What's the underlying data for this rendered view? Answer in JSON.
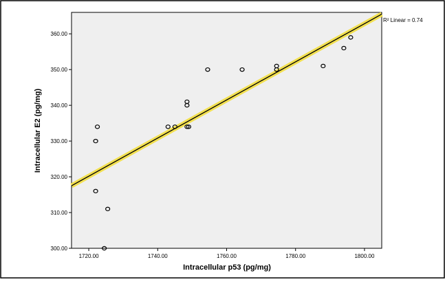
{
  "chart_data": {
    "type": "scatter",
    "xlabel": "Intracellular p53  (pg/mg)",
    "ylabel": "Intracellular E2  (pg/mg)",
    "xlim": [
      1715,
      1805
    ],
    "ylim": [
      300,
      366
    ],
    "x_ticks": [
      "1720.00",
      "1740.00",
      "1760.00",
      "1780.00",
      "1800.00"
    ],
    "y_ticks": [
      "300.00",
      "310.00",
      "320.00",
      "330.00",
      "340.00",
      "350.00",
      "360.00"
    ],
    "points": [
      {
        "x": 1722.0,
        "y": 330.0
      },
      {
        "x": 1722.5,
        "y": 334.0
      },
      {
        "x": 1722.0,
        "y": 316.0
      },
      {
        "x": 1725.5,
        "y": 311.0
      },
      {
        "x": 1724.5,
        "y": 300.0
      },
      {
        "x": 1743.0,
        "y": 334.0
      },
      {
        "x": 1745.0,
        "y": 334.0
      },
      {
        "x": 1748.5,
        "y": 341.0
      },
      {
        "x": 1748.5,
        "y": 340.0
      },
      {
        "x": 1748.5,
        "y": 334.0
      },
      {
        "x": 1749.0,
        "y": 334.0
      },
      {
        "x": 1754.5,
        "y": 350.0
      },
      {
        "x": 1764.5,
        "y": 350.0
      },
      {
        "x": 1774.5,
        "y": 351.0
      },
      {
        "x": 1774.5,
        "y": 350.0
      },
      {
        "x": 1788.0,
        "y": 351.0
      },
      {
        "x": 1794.0,
        "y": 356.0
      },
      {
        "x": 1796.0,
        "y": 359.0
      }
    ],
    "fit_line": {
      "x": [
        1715,
        1805
      ],
      "y": [
        317.5,
        365.5
      ]
    },
    "fit_label": "R² Linear = 0.74",
    "grid": false,
    "colors": {
      "plot_bg": "#efefef",
      "fit_line": "#000000",
      "fit_band": "#f2e050",
      "point_stroke": "#000000"
    }
  }
}
